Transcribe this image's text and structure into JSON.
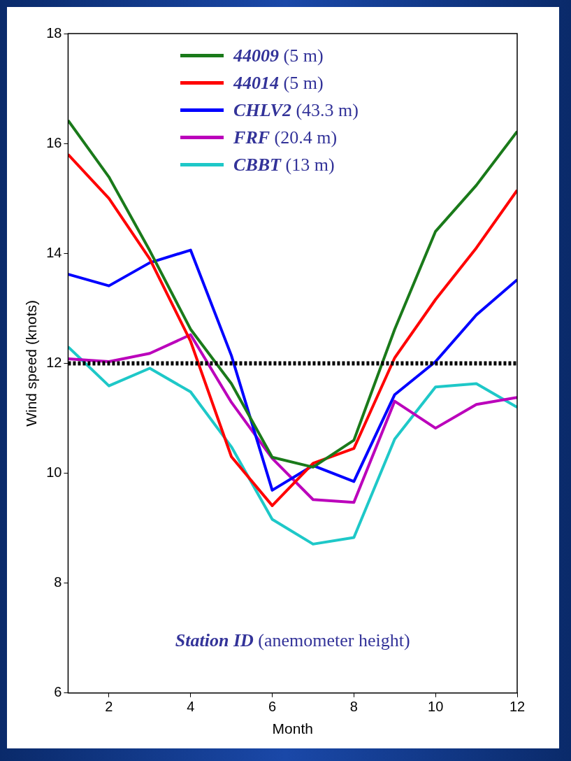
{
  "chart_data": {
    "type": "line",
    "xlabel": "Month",
    "ylabel": "Wind speed (knots)",
    "x": [
      1,
      2,
      3,
      4,
      5,
      6,
      7,
      8,
      9,
      10,
      11,
      12
    ],
    "xlim": [
      1,
      12
    ],
    "xticks": [
      2,
      4,
      6,
      8,
      10,
      12
    ],
    "ylim": [
      6,
      18
    ],
    "yticks": [
      6,
      8,
      10,
      12,
      14,
      16,
      18
    ],
    "grid": false,
    "legend": "top",
    "marker": "none",
    "line_style": "solid",
    "series": [
      {
        "name": "44009 (5 m)",
        "color": "#1a7a1a",
        "values": [
          16.42,
          15.39,
          14.05,
          12.62,
          11.63,
          10.29,
          10.11,
          10.6,
          12.62,
          14.4,
          15.24,
          16.22
        ]
      },
      {
        "name": "44014 (5 m)",
        "color": "#ff0000",
        "values": [
          15.8,
          15.0,
          13.9,
          12.4,
          10.3,
          9.41,
          10.18,
          10.45,
          12.1,
          13.16,
          14.1,
          15.15
        ]
      },
      {
        "name": "CHLV2 (43.3 m)",
        "color": "#0000ff",
        "values": [
          13.62,
          13.41,
          13.83,
          14.06,
          12.14,
          9.69,
          10.14,
          9.85,
          11.43,
          12.03,
          12.88,
          13.52
        ]
      },
      {
        "name": "FRF (20.4 m)",
        "color": "#bb00bb",
        "values": [
          12.08,
          12.03,
          12.18,
          12.52,
          11.29,
          10.27,
          9.52,
          9.47,
          11.31,
          10.82,
          11.25,
          11.38
        ]
      },
      {
        "name": "CBBT (13 m)",
        "color": "#1ec8c8",
        "values": [
          12.3,
          11.59,
          11.91,
          11.48,
          10.48,
          9.16,
          8.71,
          8.83,
          10.62,
          11.57,
          11.63,
          11.2
        ]
      }
    ],
    "ref_lines": [
      {
        "axis": "y",
        "value": 12,
        "color": "#000000",
        "line_style": "dotted"
      }
    ],
    "annotations": [
      "Station ID (anemometer height)"
    ]
  }
}
